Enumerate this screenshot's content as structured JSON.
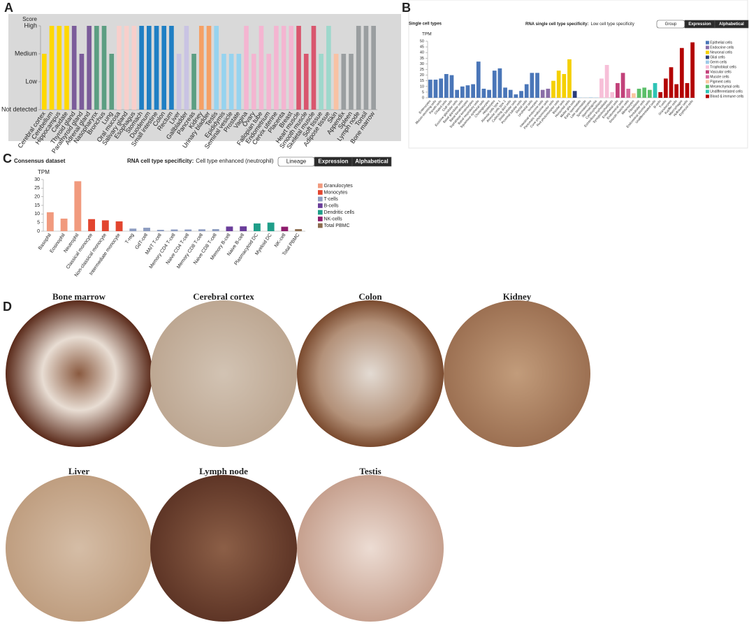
{
  "chart_data": [
    {
      "type": "bar",
      "label": "A",
      "y_title": "Score",
      "ylim": [
        0,
        3
      ],
      "yticks": [
        {
          "value": 0,
          "label": "Not detected"
        },
        {
          "value": 1,
          "label": "Low"
        },
        {
          "value": 2,
          "label": "Medium"
        },
        {
          "value": 3,
          "label": "High"
        }
      ],
      "categories": [
        "Cerebral cortex",
        "Cerebellum",
        "Hippocampus",
        "Caudate",
        "Thyroid gland",
        "Parathyroid gland",
        "Adrenal gland",
        "Nasopharynx",
        "Bronchus",
        "Lung",
        "Oral mucosa",
        "Salivary gland",
        "Esophagus",
        "Stomach",
        "Duodenum",
        "Small intestine",
        "Colon",
        "Rectum",
        "Liver",
        "Gallbladder",
        "Pancreas",
        "Kidney",
        "Urinary bladder",
        "Testis",
        "Epididymis",
        "Seminal vesicle",
        "Prostate",
        "Vagina",
        "Ovary",
        "Fallopian tube",
        "Endometrium",
        "Cervix uterine",
        "Placenta",
        "Breast",
        "Heart muscle",
        "Smooth muscle",
        "Skeletal muscle",
        "Soft tissue",
        "Adipose tissue",
        "Skin",
        "Appendix",
        "Spleen",
        "Lymph node",
        "Tonsil",
        "Bone marrow"
      ],
      "values": [
        2,
        3,
        3,
        3,
        3,
        2,
        3,
        3,
        3,
        2,
        3,
        3,
        3,
        3,
        3,
        3,
        3,
        3,
        2,
        3,
        2,
        3,
        3,
        3,
        2,
        2,
        2,
        3,
        2,
        3,
        2,
        3,
        3,
        3,
        3,
        2,
        3,
        2,
        3,
        2,
        2,
        2,
        3,
        3,
        3
      ],
      "colors": [
        "#ffd800",
        "#ffd800",
        "#ffd800",
        "#ffd800",
        "#7b5c9a",
        "#7b5c9a",
        "#7b5c9a",
        "#5c9e82",
        "#5c9e82",
        "#5c9e82",
        "#f8cfcb",
        "#f8cfcb",
        "#f8cfcb",
        "#1f7fc4",
        "#1f7fc4",
        "#1f7fc4",
        "#1f7fc4",
        "#1f7fc4",
        "#c9c3e3",
        "#c9c3e3",
        "#5c9e82",
        "#f5a064",
        "#f5a064",
        "#96d3ef",
        "#96d3ef",
        "#96d3ef",
        "#96d3ef",
        "#f4b5d1",
        "#f4b5d1",
        "#f4b5d1",
        "#f4b5d1",
        "#f4b5d1",
        "#f4b5d1",
        "#f4b5d1",
        "#d9566e",
        "#d9566e",
        "#d9566e",
        "#9ed8cc",
        "#9ed8cc",
        "#f8c2a4",
        "#9a9ea0",
        "#9a9ea0",
        "#9a9ea0",
        "#9a9ea0",
        "#9a9ea0"
      ]
    },
    {
      "type": "grouped-bar",
      "label": "B",
      "title": "Single cell types",
      "subtitle_bold": "RNA single cell type specificity:",
      "subtitle": "Low cell type specificity",
      "buttons": [
        "Group",
        "Expression",
        "Alphabetical"
      ],
      "y_title": "TPM",
      "ylim": [
        0,
        50
      ],
      "yticks": [
        0,
        5,
        10,
        15,
        20,
        25,
        30,
        35,
        40,
        45,
        50
      ],
      "groups": [
        {
          "name": "Epithelial cells",
          "color": "#4a76b8",
          "categories": [
            "Enterocytes",
            "Mucus-secreting cells",
            "Paneth cells",
            "Ciliated cells",
            "Club cells",
            "Exocrine glandular cells",
            "Basal glandular cells",
            "Basal keratinocytes",
            "Suprabasal keratinocytes",
            "Basal respiratory cells",
            "Squamous epithelial cells",
            "Cholangiocytes",
            "Hepatocytes",
            "Alveolar cells type 1",
            "Alveolar cells type 2",
            "Collecting duct cells",
            "Distal tubular cells",
            "Proximal tubular cells",
            "Ductal cells",
            "Urothelial cells",
            "Ionocytes"
          ],
          "values": [
            16,
            16,
            17,
            21,
            20,
            7,
            10,
            11,
            12,
            32,
            8,
            7,
            24,
            26,
            9,
            7,
            3,
            6,
            12,
            22,
            22
          ]
        },
        {
          "name": "Endocrine cells",
          "color": "#8a6ea8",
          "categories": [
            "Intestinal endocrine cells",
            "Pancreatic endocrine cells"
          ],
          "values": [
            7,
            8
          ]
        },
        {
          "name": "Neuronal cells",
          "color": "#f5d000",
          "categories": [
            "Cone photoreceptor cells",
            "Rod photoreceptor cells",
            "Bipolar cells",
            "Horizontal cells"
          ],
          "values": [
            15,
            24,
            21,
            34
          ]
        },
        {
          "name": "Glial cells",
          "color": "#2c3e7a",
          "categories": [
            "Muller glia cells"
          ],
          "values": [
            6
          ]
        },
        {
          "name": "Germ cells",
          "color": "#9ec9e8",
          "categories": [
            "Early spermatids",
            "Late spermatids",
            "Spermatocytes",
            "Spermatogonia"
          ],
          "values": [
            0.3,
            0.2,
            0.4,
            0.3
          ]
        },
        {
          "name": "Trophoblast cells",
          "color": "#f7bfd8",
          "categories": [
            "Cytotrophoblasts",
            "Extravillous trophoblasts",
            "Syncytiotrophoblasts"
          ],
          "values": [
            17,
            29,
            5
          ]
        },
        {
          "name": "Vascular cells",
          "color": "#c2417a",
          "categories": [
            "Endothelial cells",
            "Endometrial cells"
          ],
          "values": [
            13,
            22
          ]
        },
        {
          "name": "Muscle cells",
          "color": "#d66b9e",
          "categories": [
            "Smooth muscle cells"
          ],
          "values": [
            8
          ]
        },
        {
          "name": "Pigment cells",
          "color": "#f9c6a0",
          "categories": [
            "Melanocytes"
          ],
          "values": [
            4
          ]
        },
        {
          "name": "Mesenchymal cells",
          "color": "#5cbf6a",
          "categories": [
            "Fibroblasts",
            "Peritubular cells",
            "Endometrial stromal cells"
          ],
          "values": [
            8,
            9,
            7
          ]
        },
        {
          "name": "Undifferentiated cells",
          "color": "#2ec4b6",
          "categories": [
            "Undifferentiated cells"
          ],
          "values": [
            13
          ]
        },
        {
          "name": "Blood & immune cells",
          "color": "#b30000",
          "categories": [
            "B-cells",
            "T-cells",
            "Granulocytes",
            "Kupffer cells",
            "Macrophages",
            "Hofbauer cells",
            "Erythroid cells"
          ],
          "values": [
            5,
            17,
            27,
            12,
            44,
            13,
            49
          ]
        }
      ]
    },
    {
      "type": "grouped-bar",
      "label": "C",
      "title": "Consensus dataset",
      "subtitle_bold": "RNA cell type specificity:",
      "subtitle": "Cell type enhanced (neutrophil)",
      "buttons": [
        "Lineage",
        "Expression",
        "Alphabetical"
      ],
      "y_title": "TPM",
      "ylim": [
        0,
        30
      ],
      "yticks": [
        0,
        5,
        10,
        15,
        20,
        25,
        30
      ],
      "groups": [
        {
          "name": "Granulocytes",
          "color": "#f19a7e",
          "categories": [
            "Basophil",
            "Eosinophil",
            "Neutrophil"
          ],
          "values": [
            11,
            7.3,
            29
          ]
        },
        {
          "name": "Monocytes",
          "color": "#e2452f",
          "categories": [
            "Classical monocyte",
            "Non-classical monocyte",
            "Intermediate monocyte"
          ],
          "values": [
            7,
            6.3,
            5.7
          ]
        },
        {
          "name": "T-cells",
          "color": "#8d9cc0",
          "categories": [
            "T-reg",
            "GdT-cell",
            "MAIT T-cell",
            "Memory CD4 T-cell",
            "Naive CD4 T-cell",
            "Memory CD8 T-cell",
            "Naive CD8 T-cell"
          ],
          "values": [
            1.5,
            2,
            0.8,
            1,
            1,
            1.1,
            1.2
          ]
        },
        {
          "name": "B-cells",
          "color": "#6a3d9a",
          "categories": [
            "Memory B-cell",
            "Naive B-cell"
          ],
          "values": [
            2.7,
            2.8
          ]
        },
        {
          "name": "Dendritic cells",
          "color": "#1f9e89",
          "categories": [
            "Plasmacytoid DC",
            "Myeloid DC"
          ],
          "values": [
            4.5,
            5
          ]
        },
        {
          "name": "NK-cells",
          "color": "#8e1b6c",
          "categories": [
            "NK-cell"
          ],
          "values": [
            2.6
          ]
        },
        {
          "name": "Total PBMC",
          "color": "#8c6d4f",
          "categories": [
            "Total PBMC"
          ],
          "values": [
            1.2
          ]
        }
      ]
    }
  ],
  "tissue_panel": {
    "label": "D",
    "tissues": [
      "Bone marrow",
      "Cerebral cortex",
      "Colon",
      "Kidney",
      "Liver",
      "Lymph node",
      "Testis"
    ]
  }
}
